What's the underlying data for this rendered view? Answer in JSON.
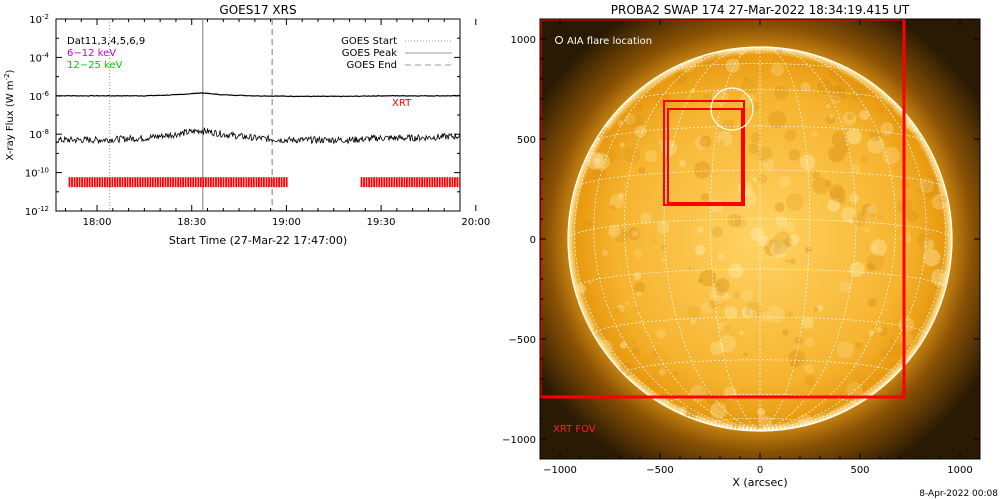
{
  "footer_timestamp": "8-Apr-2022 00:08",
  "chart_data": [
    {
      "type": "line",
      "title": "GOES17 XRS",
      "xlabel": "Start Time (27-Mar-22 17:47:00)",
      "ylabel": "X-ray Flux (W m^-2)",
      "ylabel_parts": {
        "main": "X-ray Flux (W m",
        "sup": "-2",
        "close": ")"
      },
      "yscale": "log",
      "ylim_exponent": [
        -12,
        -2
      ],
      "y_ticks": [
        {
          "exp": -2,
          "label": "10",
          "sup": "-2"
        },
        {
          "exp": -4,
          "label": "10",
          "sup": "-4"
        },
        {
          "exp": -6,
          "label": "10",
          "sup": "-6"
        },
        {
          "exp": -8,
          "label": "10",
          "sup": "-8"
        },
        {
          "exp": -10,
          "label": "10",
          "sup": "-10"
        },
        {
          "exp": -12,
          "label": "10",
          "sup": "-12"
        }
      ],
      "xlim_minutes": [
        47,
        175
      ],
      "x_ticks": [
        {
          "minutes": 60,
          "label": "18:00"
        },
        {
          "minutes": 90,
          "label": "18:30"
        },
        {
          "minutes": 120,
          "label": "19:00"
        },
        {
          "minutes": 150,
          "label": "19:30"
        },
        {
          "minutes": 180,
          "label": "20:00"
        }
      ],
      "left_legend": [
        {
          "text": "Dat11,3,4,5,6,9",
          "color": "#000000"
        },
        {
          "text": "6−12 keV",
          "color": "#cc00cc"
        },
        {
          "text": "12−25 keV",
          "color": "#00cc00"
        }
      ],
      "right_legend": [
        {
          "text": "GOES Start",
          "style": "dotted"
        },
        {
          "text": "GOES Peak",
          "style": "solid"
        },
        {
          "text": "GOES End",
          "style": "dashed"
        }
      ],
      "markers": {
        "goes_start": 64.0,
        "goes_peak": 93.5,
        "goes_end": 115.5
      },
      "series": [
        {
          "name": "6−12 keV",
          "color": "#000000",
          "x": [
            47,
            60,
            75,
            85,
            93,
            100,
            110,
            120,
            130,
            140,
            150,
            160,
            175
          ],
          "y_exponent": [
            -6.0,
            -6.0,
            -6.0,
            -5.95,
            -5.85,
            -5.95,
            -6.0,
            -6.02,
            -6.03,
            -6.03,
            -6.0,
            -6.0,
            -6.0
          ]
        },
        {
          "name": "12−25 keV",
          "color": "#000000",
          "x": [
            47,
            60,
            75,
            85,
            93,
            100,
            110,
            120,
            130,
            140,
            150,
            160,
            175
          ],
          "y_exponent": [
            -8.3,
            -8.3,
            -8.2,
            -8.0,
            -7.8,
            -8.0,
            -8.2,
            -8.3,
            -8.3,
            -8.3,
            -8.2,
            -8.2,
            -8.1
          ]
        }
      ],
      "xrt_label": "XRT",
      "xrt_coverage_minutes": [
        [
          51,
          120.5
        ],
        [
          143.5,
          175
        ]
      ],
      "xrt_level_exponent": -10.5
    },
    {
      "type": "image",
      "title": "PROBA2 SWAP 174 27-Mar-2022 18:34:19.415 UT",
      "xlabel": "X (arcsec)",
      "xlim": [
        -1100,
        1100
      ],
      "ylim": [
        -1100,
        1100
      ],
      "x_ticks": [
        -1000,
        -500,
        0,
        500,
        1000
      ],
      "y_ticks": [
        -1000,
        -500,
        0,
        500,
        1000
      ],
      "tick_labels": {
        "-1000": "−1000",
        "-500": "−500",
        "0": "0",
        "500": "500",
        "1000": "1000"
      },
      "solar_radius_arcsec": 960,
      "aia_legend": "AIA flare location",
      "aia_flare": {
        "x": -140,
        "y": 650,
        "r": 105
      },
      "fov_boxes": [
        {
          "x0": -480,
          "y0": 170,
          "x1": -80,
          "y1": 690
        },
        {
          "x0": -460,
          "y0": 180,
          "x1": -90,
          "y1": 650
        }
      ],
      "xrt_fov_label": "XRT FOV",
      "xrt_fov": {
        "x0": -1100,
        "y0": -790,
        "x1": 720,
        "y1": 1100
      },
      "colors": {
        "background": "#2a1a04",
        "disk": "#ffc64a",
        "limb": "#b36c02",
        "fov": "#ff0000"
      }
    }
  ]
}
